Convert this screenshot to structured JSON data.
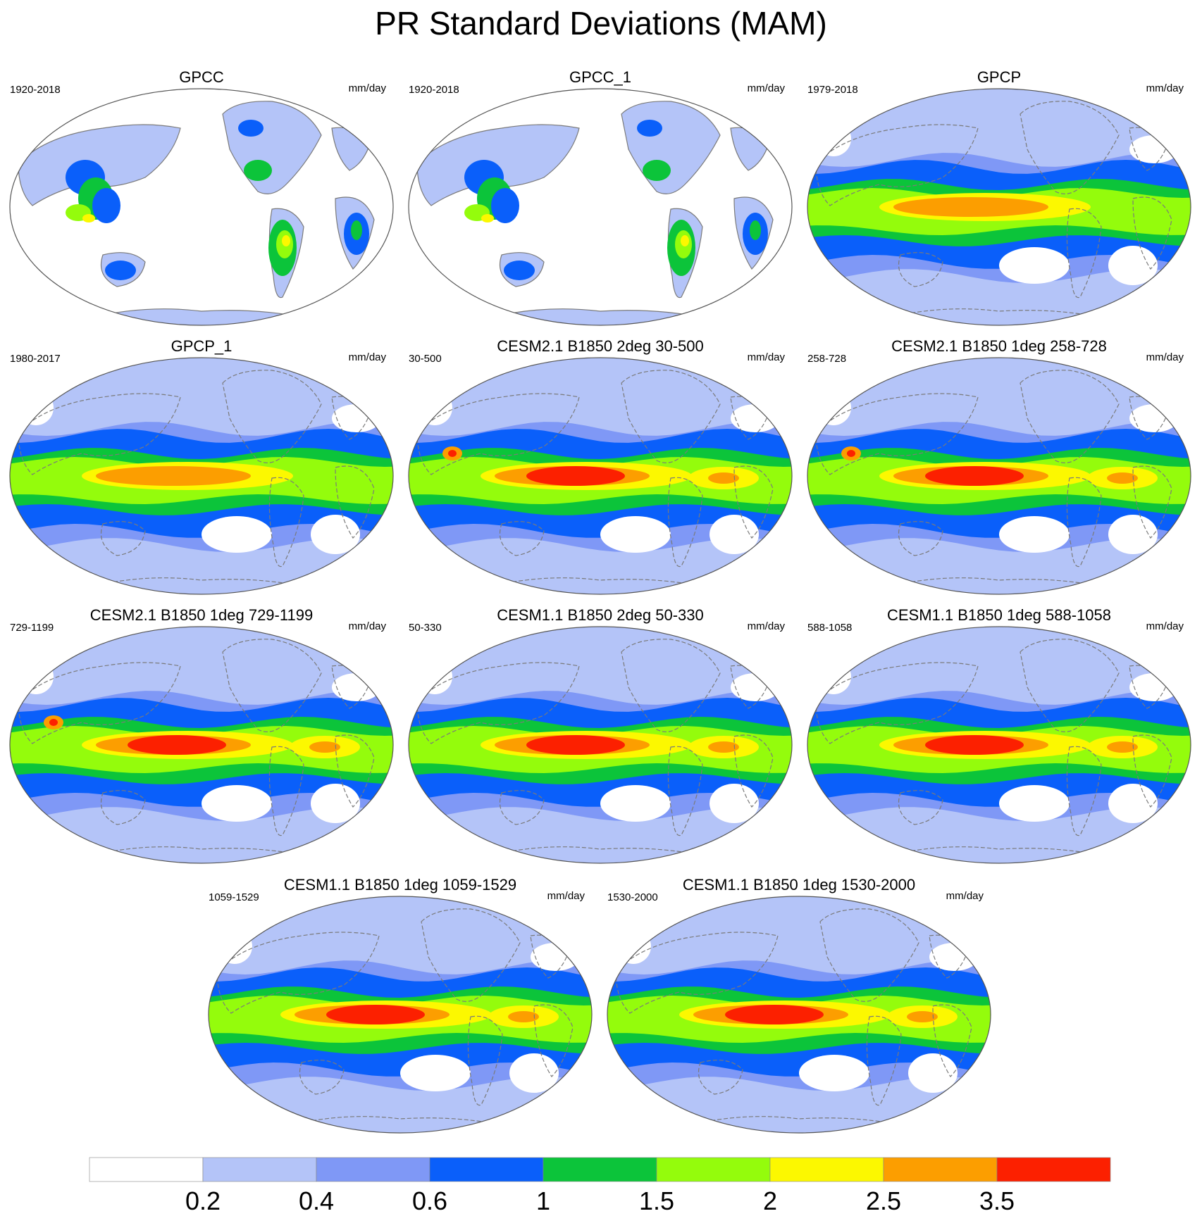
{
  "title": "PR Standard Deviations (MAM)",
  "panels": [
    {
      "title": "GPCC",
      "period": "1920-2018",
      "units": "mm/day",
      "style": "obs-land"
    },
    {
      "title": "GPCC_1",
      "period": "1920-2018",
      "units": "mm/day",
      "style": "obs-land"
    },
    {
      "title": "GPCP",
      "period": "1979-2018",
      "units": "mm/day",
      "style": "obs-global"
    },
    {
      "title": "GPCP_1",
      "period": "1980-2017",
      "units": "mm/day",
      "style": "obs-global"
    },
    {
      "title": "CESM2.1 B1850 2deg 30-500",
      "period": "30-500",
      "units": "mm/day",
      "style": "model-strong"
    },
    {
      "title": "CESM2.1 B1850 1deg 258-728",
      "period": "258-728",
      "units": "mm/day",
      "style": "model-strong"
    },
    {
      "title": "CESM2.1 B1850 1deg 729-1199",
      "period": "729-1199",
      "units": "mm/day",
      "style": "model-strong"
    },
    {
      "title": "CESM1.1 B1850 2deg 50-330",
      "period": "50-330",
      "units": "mm/day",
      "style": "model-medium"
    },
    {
      "title": "CESM1.1 B1850 1deg 588-1058",
      "period": "588-1058",
      "units": "mm/day",
      "style": "model-medium"
    },
    {
      "title": "CESM1.1 B1850 1deg 1059-1529",
      "period": "1059-1529",
      "units": "mm/day",
      "style": "model-medium"
    },
    {
      "title": "CESM1.1 B1850 1deg 1530-2000",
      "period": "1530-2000",
      "units": "mm/day",
      "style": "model-medium"
    }
  ],
  "colorbar": {
    "colors": [
      "#ffffff",
      "#b4c4f8",
      "#7f98f6",
      "#0a5ffa",
      "#0cc43a",
      "#94fc0c",
      "#fcf800",
      "#fc9e00",
      "#fc2000"
    ],
    "labels": [
      "0.2",
      "0.4",
      "0.6",
      "1",
      "1.5",
      "2",
      "2.5",
      "3.5"
    ]
  }
}
